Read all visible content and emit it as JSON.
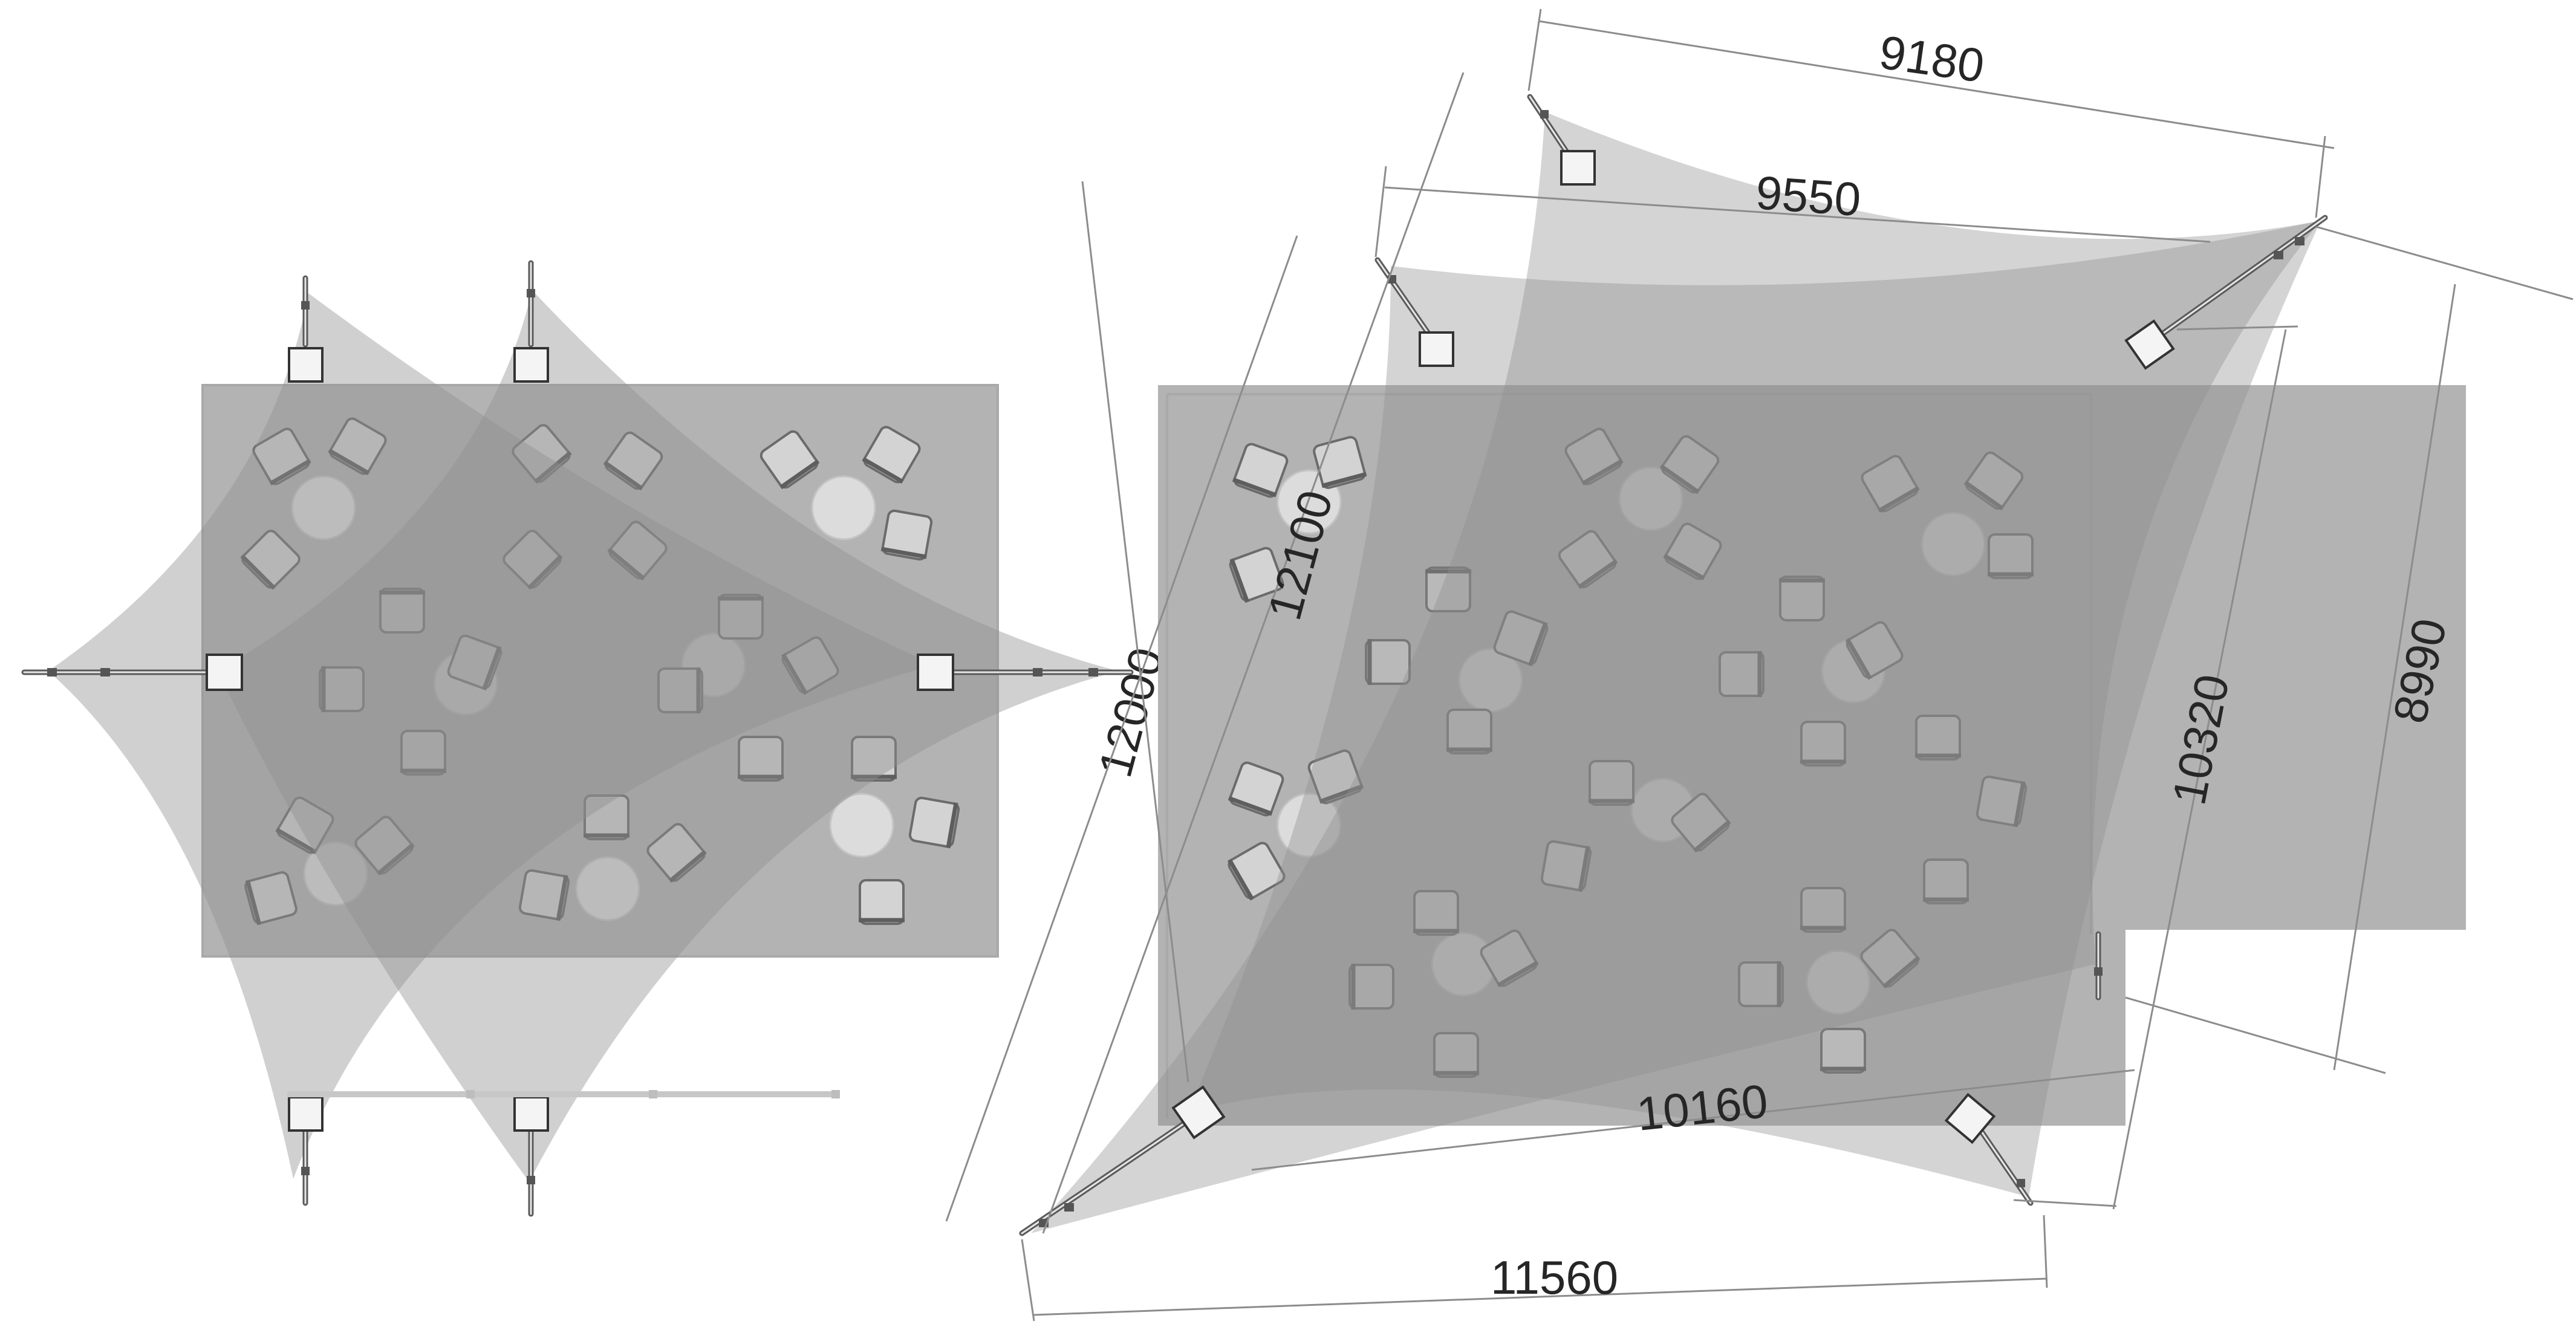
{
  "diagram": {
    "title": "",
    "colors": {
      "background": "#ffffff",
      "sail": "#8c8c8c",
      "floor": "#b4b4b4",
      "dimension": "#262626"
    },
    "left_plan": {
      "dimension": "12000"
    },
    "right_plan": {
      "dimensions": {
        "top_outer": "9180",
        "top_inner": "9550",
        "left_diagonal": "12100",
        "right_inner": "10320",
        "right_outer": "8990",
        "bottom_inner": "10160",
        "bottom_outer": "11560"
      }
    }
  }
}
